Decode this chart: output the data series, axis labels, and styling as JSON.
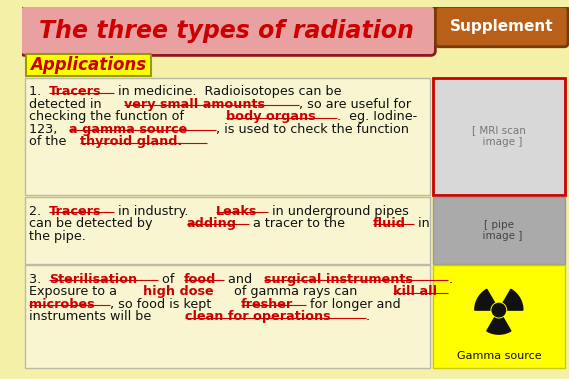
{
  "bg_color": "#f5f0a8",
  "title_text": "The three types of radiation",
  "title_bg": "#e8a0a0",
  "title_border": "#8b1a1a",
  "supplement_text": "Supplement",
  "supplement_bg": "#b8601a",
  "supplement_border": "#7a3a05",
  "applications_text": "Applications",
  "applications_bg": "#ffff00",
  "text_black": "#111111",
  "text_red": "#cc0000",
  "section_bg": "#f8f5d0",
  "section_border": "#bbbbaa",
  "img1_border": "#cc0000",
  "img1_bg": "#d8d8d8",
  "img2_bg": "#aaaaaa",
  "img3_bg": "#ffff00",
  "radiation_color": "#111111",
  "gamma_source_text": "Gamma source"
}
